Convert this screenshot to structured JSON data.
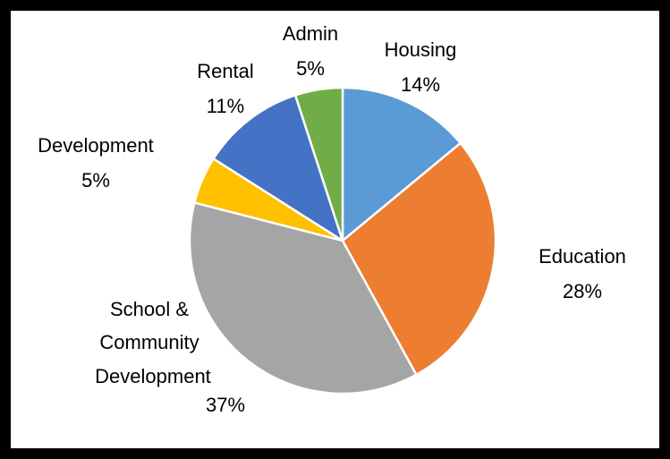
{
  "chart_data": {
    "type": "pie",
    "title": "",
    "start_angle_deg": -90,
    "direction": "clockwise",
    "slices": [
      {
        "label": "Housing",
        "value": 14,
        "value_label": "14%",
        "color": "#5B9BD5"
      },
      {
        "label": "Education",
        "value": 28,
        "value_label": "28%",
        "color": "#ED7D31"
      },
      {
        "label_lines": [
          "School &",
          "Community",
          "Development"
        ],
        "value": 37,
        "value_label": "37%",
        "color": "#A5A5A5"
      },
      {
        "label": "Development",
        "value": 5,
        "value_label": "5%",
        "color": "#FFC000"
      },
      {
        "label": "Rental",
        "value": 11,
        "value_label": "11%",
        "color": "#4472C4"
      },
      {
        "label": "Admin",
        "value": 5,
        "value_label": "5%",
        "color": "#70AD47"
      }
    ]
  }
}
